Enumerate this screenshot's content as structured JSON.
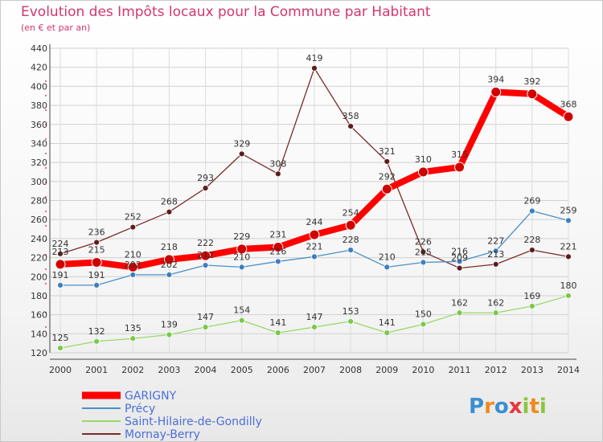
{
  "title": "Evolution des Impôts locaux pour la Commune par Habitant",
  "subtitle": "(en € et par an)",
  "logo": "Proxiti",
  "chart_data": {
    "type": "line",
    "title": "Evolution des Impôts locaux pour la Commune par Habitant",
    "subtitle": "(en € et par an)",
    "x": [
      2000,
      2001,
      2002,
      2003,
      2004,
      2005,
      2006,
      2007,
      2008,
      2009,
      2010,
      2011,
      2012,
      2013,
      2014
    ],
    "ylim": [
      120,
      440
    ],
    "yticks": [
      120,
      140,
      160,
      180,
      200,
      220,
      240,
      260,
      280,
      300,
      320,
      340,
      360,
      380,
      400,
      420,
      440
    ],
    "grid": true,
    "legend_position": "bottom-left",
    "series": [
      {
        "name": "GARIGNY",
        "color": "#ff0000",
        "values": [
          213,
          215,
          210,
          218,
          222,
          229,
          231,
          244,
          254,
          292,
          310,
          315,
          394,
          392,
          368
        ]
      },
      {
        "name": "Précy",
        "color": "#4a90c8",
        "values": [
          191,
          191,
          202,
          202,
          212,
          210,
          216,
          221,
          228,
          210,
          215,
          216,
          227,
          269,
          259
        ]
      },
      {
        "name": "Saint-Hilaire-de-Gondilly",
        "color": "#99d866",
        "values": [
          125,
          132,
          135,
          139,
          147,
          154,
          141,
          147,
          153,
          141,
          150,
          162,
          162,
          169,
          180
        ]
      },
      {
        "name": "Mornay-Berry",
        "color": "#7b2a2a",
        "values": [
          224,
          236,
          252,
          268,
          293,
          329,
          308,
          419,
          358,
          321,
          226,
          209,
          213,
          228,
          221
        ]
      }
    ]
  }
}
